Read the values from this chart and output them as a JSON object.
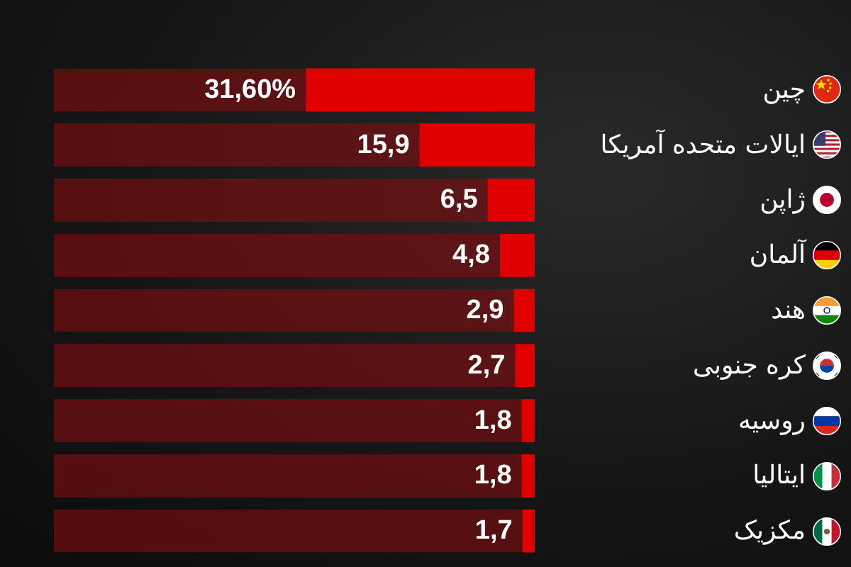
{
  "chart_data": {
    "type": "bar",
    "orientation": "horizontal",
    "categories": [
      "چین",
      "ایالات متحده آمریکا",
      "ژاپن",
      "آلمان",
      "هند",
      "کره جنوبی",
      "روسیه",
      "ایتالیا",
      "مکزیک"
    ],
    "values": [
      31.6,
      15.9,
      6.5,
      4.8,
      2.9,
      2.7,
      1.8,
      1.8,
      1.7
    ],
    "value_labels": [
      "31,60%",
      "15,9",
      "6,5",
      "4,8",
      "2,9",
      "2,7",
      "1,8",
      "1,8",
      "1,7"
    ],
    "color": "#e00000",
    "grid": false,
    "tick_labels": "y"
  }
}
